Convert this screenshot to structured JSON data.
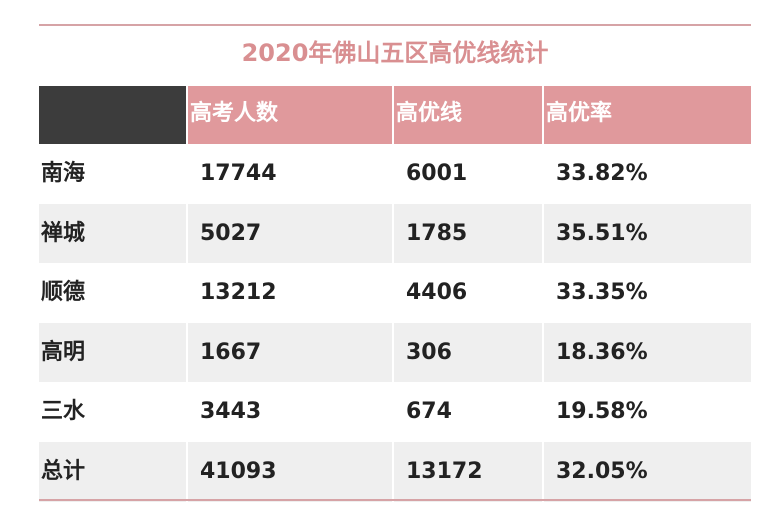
{
  "title": "2020年佛山五区高优线统计",
  "columns": [
    "",
    "高考人数",
    "高优线",
    "高优率"
  ],
  "rows": [
    [
      "南海",
      "17744",
      "6001",
      "33.82%"
    ],
    [
      "禅城",
      "5027",
      "1785",
      "35.51%"
    ],
    [
      "顺德",
      "13212",
      "4406",
      "33.35%"
    ],
    [
      "高明",
      "1667",
      "306",
      "18.36%"
    ],
    [
      "三水",
      "3443",
      "674",
      "19.58%"
    ],
    [
      "总计",
      "41093",
      "13172",
      "32.05%"
    ]
  ],
  "colors": {
    "title": "#d98f91",
    "header_pink": "#e0999c",
    "header_dark": "#3c3c3c",
    "rule": "#d6a3a6",
    "row_alt": "#efefef"
  }
}
